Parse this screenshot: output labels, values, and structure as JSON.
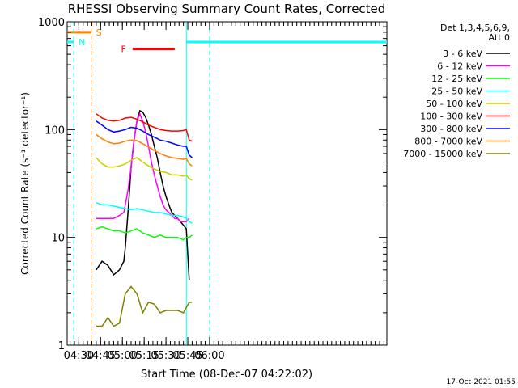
{
  "chart_data": {
    "type": "line",
    "title": "RHESSI Observing Summary Count Rates, Corrected",
    "xlabel": "Start Time (08-Dec-07 04:22:02)",
    "ylabel": "Corrected Count Rate (s⁻¹ detector⁻¹)",
    "yscale": "log",
    "ylim": [
      1,
      1000
    ],
    "y_ticks": [
      {
        "value": 1,
        "label": "1"
      },
      {
        "value": 10,
        "label": "10"
      },
      {
        "value": 100,
        "label": "100"
      },
      {
        "value": 1000,
        "label": "1000"
      }
    ],
    "x_range_min": [
      0,
      220
    ],
    "x_ticks": [
      {
        "min": 8,
        "label": "04:30"
      },
      {
        "min": 23,
        "label": "04:45"
      },
      {
        "min": 38,
        "label": "05:00"
      },
      {
        "min": 53,
        "label": "05:15"
      },
      {
        "min": 68,
        "label": "05:30"
      },
      {
        "min": 83,
        "label": "05:45"
      },
      {
        "min": 98,
        "label": "06:00"
      }
    ],
    "legend_header": [
      "Det 1,3,4,5,6,9,",
      "Att 0"
    ],
    "legend_position": "right",
    "series": [
      {
        "name": "3 - 6 keV",
        "color": "#000000",
        "points": [
          [
            20,
            5
          ],
          [
            24,
            6
          ],
          [
            28,
            5.5
          ],
          [
            32,
            4.5
          ],
          [
            36,
            5
          ],
          [
            39,
            6
          ],
          [
            40,
            8
          ],
          [
            42,
            18
          ],
          [
            44,
            45
          ],
          [
            46,
            80
          ],
          [
            48,
            120
          ],
          [
            50,
            150
          ],
          [
            52,
            145
          ],
          [
            54,
            130
          ],
          [
            56,
            110
          ],
          [
            58,
            90
          ],
          [
            60,
            70
          ],
          [
            62,
            55
          ],
          [
            64,
            40
          ],
          [
            66,
            30
          ],
          [
            68,
            24
          ],
          [
            70,
            20
          ],
          [
            72,
            17
          ],
          [
            74,
            16
          ],
          [
            76,
            15
          ],
          [
            78,
            14
          ],
          [
            80,
            13
          ],
          [
            82,
            12
          ],
          [
            84,
            4
          ]
        ]
      },
      {
        "name": "6 - 12 keV",
        "color": "#ff00ff",
        "points": [
          [
            20,
            15
          ],
          [
            24,
            15
          ],
          [
            28,
            15
          ],
          [
            32,
            15
          ],
          [
            36,
            16
          ],
          [
            39,
            17
          ],
          [
            40,
            20
          ],
          [
            42,
            28
          ],
          [
            44,
            45
          ],
          [
            46,
            80
          ],
          [
            48,
            120
          ],
          [
            50,
            140
          ],
          [
            52,
            120
          ],
          [
            54,
            95
          ],
          [
            56,
            70
          ],
          [
            58,
            50
          ],
          [
            60,
            38
          ],
          [
            62,
            30
          ],
          [
            64,
            24
          ],
          [
            66,
            20
          ],
          [
            68,
            18
          ],
          [
            70,
            17
          ],
          [
            72,
            16
          ],
          [
            74,
            15
          ],
          [
            76,
            15
          ],
          [
            78,
            14
          ],
          [
            80,
            14
          ],
          [
            82,
            14
          ],
          [
            84,
            15
          ]
        ]
      },
      {
        "name": "12 - 25 keV",
        "color": "#00ff00",
        "points": [
          [
            20,
            12
          ],
          [
            24,
            12.5
          ],
          [
            28,
            12
          ],
          [
            32,
            11.5
          ],
          [
            36,
            11.5
          ],
          [
            40,
            11
          ],
          [
            44,
            11.5
          ],
          [
            48,
            12
          ],
          [
            52,
            11
          ],
          [
            56,
            10.5
          ],
          [
            60,
            10
          ],
          [
            64,
            10.5
          ],
          [
            68,
            10
          ],
          [
            72,
            10
          ],
          [
            76,
            10
          ],
          [
            80,
            9.5
          ],
          [
            82,
            10
          ],
          [
            84,
            10
          ],
          [
            86,
            10.5
          ]
        ]
      },
      {
        "name": "25 - 50 keV",
        "color": "#00ffff",
        "points": [
          [
            20,
            21
          ],
          [
            24,
            20
          ],
          [
            28,
            20
          ],
          [
            32,
            19.5
          ],
          [
            36,
            19
          ],
          [
            40,
            18.5
          ],
          [
            44,
            18
          ],
          [
            48,
            18.5
          ],
          [
            52,
            18
          ],
          [
            56,
            17.5
          ],
          [
            60,
            17
          ],
          [
            64,
            17
          ],
          [
            68,
            16.5
          ],
          [
            72,
            16
          ],
          [
            76,
            16
          ],
          [
            80,
            15.5
          ],
          [
            82,
            15
          ],
          [
            84,
            14
          ],
          [
            86,
            13.5
          ]
        ]
      },
      {
        "name": "50 - 100 keV",
        "color": "#cccc00",
        "points": [
          [
            20,
            55
          ],
          [
            24,
            48
          ],
          [
            28,
            45
          ],
          [
            32,
            45
          ],
          [
            36,
            46
          ],
          [
            40,
            48
          ],
          [
            44,
            52
          ],
          [
            48,
            55
          ],
          [
            52,
            50
          ],
          [
            56,
            46
          ],
          [
            60,
            43
          ],
          [
            64,
            41
          ],
          [
            68,
            40
          ],
          [
            72,
            38
          ],
          [
            76,
            38
          ],
          [
            80,
            37
          ],
          [
            82,
            38
          ],
          [
            84,
            35
          ],
          [
            86,
            34
          ]
        ]
      },
      {
        "name": "100 - 300 keV",
        "color": "#ff0000",
        "points": [
          [
            20,
            140
          ],
          [
            24,
            128
          ],
          [
            28,
            122
          ],
          [
            32,
            120
          ],
          [
            36,
            122
          ],
          [
            40,
            128
          ],
          [
            44,
            130
          ],
          [
            48,
            125
          ],
          [
            52,
            118
          ],
          [
            56,
            110
          ],
          [
            60,
            105
          ],
          [
            64,
            100
          ],
          [
            68,
            98
          ],
          [
            72,
            97
          ],
          [
            76,
            97
          ],
          [
            80,
            98
          ],
          [
            82,
            100
          ],
          [
            84,
            80
          ],
          [
            86,
            78
          ]
        ]
      },
      {
        "name": "300 - 800 keV",
        "color": "#0000ff",
        "points": [
          [
            20,
            120
          ],
          [
            24,
            110
          ],
          [
            28,
            100
          ],
          [
            32,
            95
          ],
          [
            36,
            97
          ],
          [
            40,
            100
          ],
          [
            44,
            105
          ],
          [
            48,
            103
          ],
          [
            52,
            97
          ],
          [
            56,
            90
          ],
          [
            60,
            85
          ],
          [
            64,
            80
          ],
          [
            68,
            78
          ],
          [
            72,
            75
          ],
          [
            76,
            72
          ],
          [
            80,
            70
          ],
          [
            82,
            70
          ],
          [
            84,
            58
          ],
          [
            86,
            55
          ]
        ]
      },
      {
        "name": "800 - 7000 keV",
        "color": "#ff8000",
        "points": [
          [
            20,
            90
          ],
          [
            24,
            82
          ],
          [
            28,
            77
          ],
          [
            32,
            74
          ],
          [
            36,
            75
          ],
          [
            40,
            78
          ],
          [
            44,
            80
          ],
          [
            48,
            79
          ],
          [
            52,
            74
          ],
          [
            56,
            69
          ],
          [
            60,
            64
          ],
          [
            64,
            60
          ],
          [
            68,
            57
          ],
          [
            72,
            55
          ],
          [
            76,
            54
          ],
          [
            80,
            53
          ],
          [
            82,
            54
          ],
          [
            84,
            48
          ],
          [
            86,
            46
          ]
        ]
      },
      {
        "name": "7000 - 15000 keV",
        "color": "#808000",
        "points": [
          [
            20,
            1.5
          ],
          [
            24,
            1.5
          ],
          [
            28,
            1.8
          ],
          [
            32,
            1.5
          ],
          [
            36,
            1.6
          ],
          [
            40,
            3
          ],
          [
            44,
            3.5
          ],
          [
            48,
            3
          ],
          [
            52,
            2
          ],
          [
            56,
            2.5
          ],
          [
            60,
            2.4
          ],
          [
            64,
            2
          ],
          [
            68,
            2.1
          ],
          [
            72,
            2.1
          ],
          [
            76,
            2.1
          ],
          [
            80,
            2
          ],
          [
            84,
            2.5
          ],
          [
            86,
            2.5
          ]
        ]
      }
    ],
    "markers": [
      {
        "label": "S",
        "color": "#ff8000",
        "x_min": 16.5,
        "bar_from_min": 0,
        "level": 800
      },
      {
        "label": "N",
        "color": "#00ffff",
        "x_min": 4.5,
        "bar_from_min": 0,
        "level": 650
      },
      {
        "label": "F",
        "color": "#ff0000",
        "bar": [
          45,
          74
        ],
        "level": 560
      }
    ],
    "night_region_min": [
      82,
      98
    ],
    "footer_timestamp": "17-Oct-2021 01:55"
  }
}
